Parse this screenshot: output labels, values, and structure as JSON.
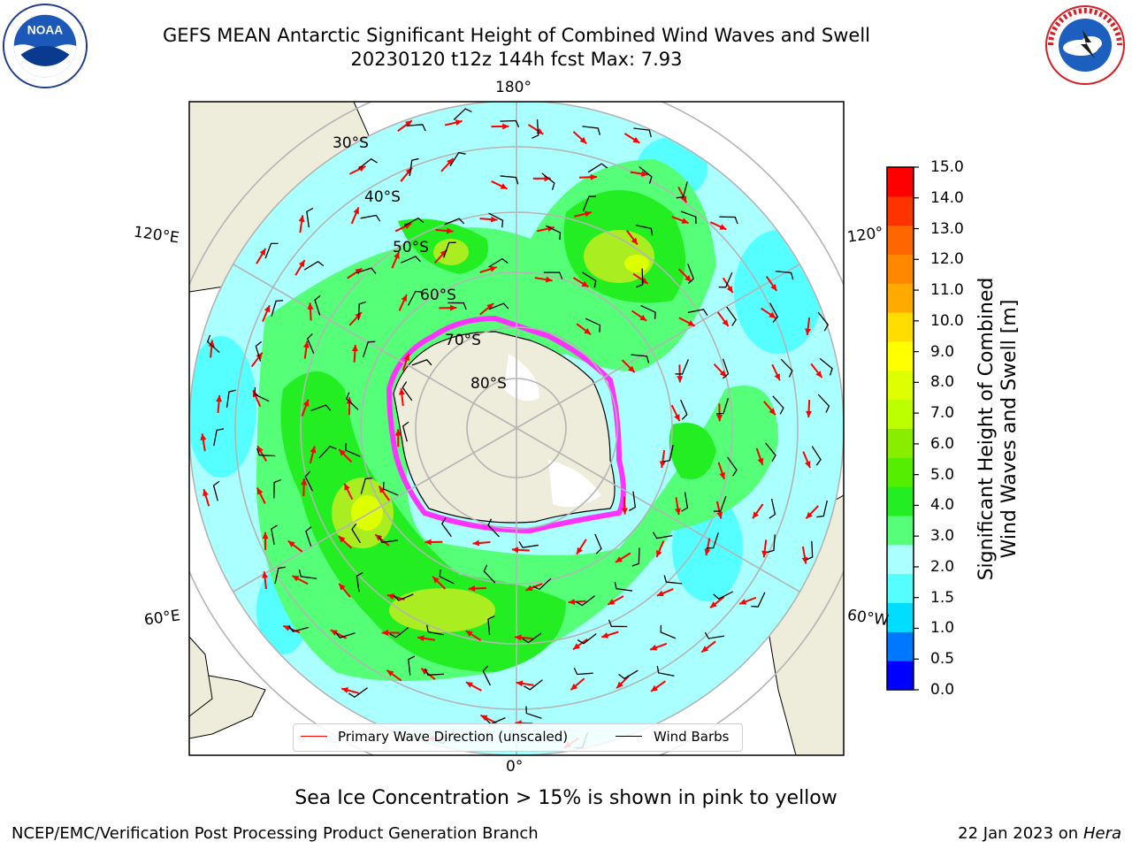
{
  "header": {
    "title_line1": "GEFS MEAN Antarctic Significant Height of Combined Wind Waves and Swell",
    "title_line2": "20230120 t12z 144h fcst   Max: 7.93"
  },
  "logos": {
    "left": "NOAA",
    "right": "NATIONAL WEATHER SERVICE"
  },
  "map": {
    "longitude_labels": {
      "top": "180°",
      "bottom": "0°",
      "upper_left": "120°E",
      "lower_left": "60°E",
      "upper_right": "120°",
      "lower_right": "60°W"
    },
    "latitude_labels": [
      "30°S",
      "40°S",
      "50°S",
      "60°S",
      "70°S",
      "80°S"
    ],
    "colors": {
      "land": "#eeecda",
      "ocean_low": "#aaffff",
      "ocean_mid": "#55ffff",
      "wave_green_light": "#55ff77",
      "wave_green": "#22ee22",
      "wave_yellowgreen": "#aaee22",
      "wave_yellow": "#eeff00",
      "sea_ice": "#ff33ff",
      "arrow": "#ff0000",
      "barb": "#000000"
    }
  },
  "legend": {
    "primary_wave": "Primary Wave Direction (unscaled)",
    "wind_barbs": "Wind Barbs"
  },
  "colorbar": {
    "title_line1": "Significant Height of Combined",
    "title_line2": "Wind Waves and Swell [m]",
    "ticks": [
      "15.0",
      "14.0",
      "13.0",
      "12.0",
      "11.0",
      "10.0",
      "9.0",
      "8.0",
      "7.0",
      "6.0",
      "5.0",
      "4.0",
      "3.0",
      "2.0",
      "1.5",
      "1.0",
      "0.5",
      "0.0"
    ],
    "colors": [
      "#0000ff",
      "#0077ff",
      "#00ddff",
      "#55ffff",
      "#aaffff",
      "#55ff77",
      "#22ee22",
      "#55ee00",
      "#88ee00",
      "#bbff00",
      "#ddff00",
      "#ffff00",
      "#ffdd00",
      "#ffaa00",
      "#ff8800",
      "#ff6600",
      "#ff3300",
      "#ff0000"
    ]
  },
  "caption": "Sea Ice Concentration > 15% is shown in pink to yellow",
  "footer": {
    "left": "NCEP/EMC/Verification Post Processing Product Generation Branch",
    "right_prefix": "22 Jan 2023 on ",
    "right_italic": "Hera"
  }
}
